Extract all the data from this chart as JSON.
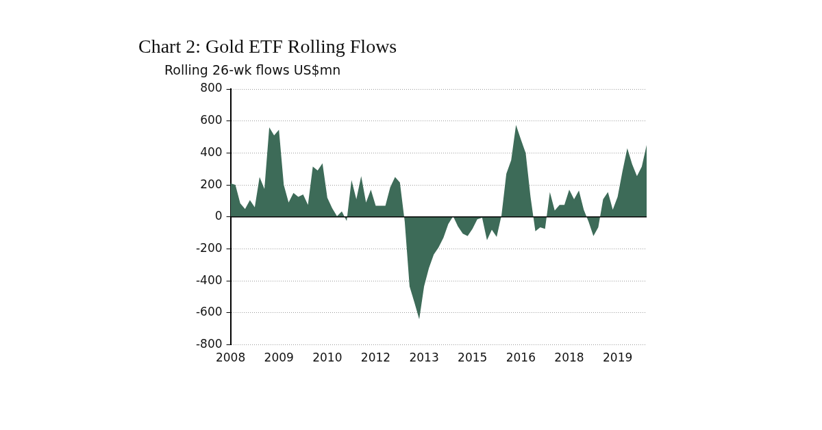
{
  "chart_data": {
    "type": "area",
    "title": "Chart 2: Gold ETF Rolling Flows",
    "ylabel": "Rolling 26-wk flows US$mn",
    "categories": [
      "2008",
      null,
      null,
      null,
      null,
      null,
      null,
      null,
      null,
      null,
      "2009",
      null,
      null,
      null,
      null,
      null,
      null,
      null,
      null,
      null,
      "2010",
      null,
      null,
      null,
      null,
      null,
      null,
      null,
      null,
      null,
      "2012",
      null,
      null,
      null,
      null,
      null,
      null,
      null,
      null,
      null,
      "2013",
      null,
      null,
      null,
      null,
      null,
      null,
      null,
      null,
      null,
      "2015",
      null,
      null,
      null,
      null,
      null,
      null,
      null,
      null,
      null,
      "2016",
      null,
      null,
      null,
      null,
      null,
      null,
      null,
      null,
      null,
      "2018",
      null,
      null,
      null,
      null,
      null,
      null,
      null,
      null,
      null,
      "2019",
      null,
      null,
      null,
      null,
      null,
      null
    ],
    "series": [
      {
        "color": "#3d6b58",
        "values": [
          210,
          200,
          85,
          50,
          105,
          60,
          250,
          175,
          560,
          510,
          545,
          200,
          90,
          150,
          125,
          140,
          75,
          315,
          290,
          335,
          120,
          55,
          5,
          35,
          -25,
          230,
          110,
          255,
          90,
          170,
          70,
          70,
          70,
          185,
          250,
          215,
          -30,
          -435,
          -535,
          -640,
          -435,
          -320,
          -235,
          -190,
          -130,
          -45,
          5,
          -60,
          -105,
          -120,
          -75,
          -15,
          -5,
          -145,
          -80,
          -125,
          10,
          270,
          355,
          575,
          485,
          400,
          125,
          -90,
          -65,
          -75,
          155,
          40,
          75,
          75,
          170,
          110,
          165,
          45,
          -30,
          -120,
          -65,
          110,
          155,
          45,
          125,
          285,
          430,
          330,
          255,
          315,
          450
        ]
      }
    ],
    "ylim": [
      -800,
      800
    ],
    "yticks": [
      -800,
      -600,
      -400,
      -200,
      0,
      200,
      400,
      600,
      800
    ],
    "grid": "y",
    "legend": false
  }
}
